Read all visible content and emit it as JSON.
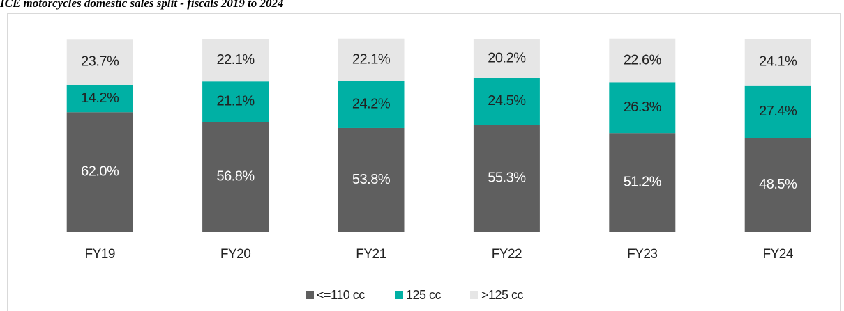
{
  "chart_data": {
    "type": "stacked_bar",
    "title": "ICE motorcycles domestic sales split - fiscals 2019 to 2024",
    "categories": [
      "FY19",
      "FY20",
      "FY21",
      "FY22",
      "FY23",
      "FY24"
    ],
    "series": [
      {
        "name": "<=110 cc",
        "color": "#5f5f5f",
        "values": [
          62.0,
          56.8,
          53.8,
          55.3,
          51.2,
          48.5
        ],
        "value_labels": [
          "62.0%",
          "56.8%",
          "53.8%",
          "55.3%",
          "51.2%",
          "48.5%"
        ]
      },
      {
        "name": "125 cc",
        "color": "#00b0a4",
        "values": [
          14.2,
          21.1,
          24.2,
          24.5,
          26.3,
          27.4
        ],
        "value_labels": [
          "14.2%",
          "21.1%",
          "24.2%",
          "24.5%",
          "26.3%",
          "27.4%"
        ]
      },
      {
        "name": ">125 cc",
        "color": "#e6e6e6",
        "values": [
          23.7,
          22.1,
          22.1,
          20.2,
          22.6,
          24.1
        ],
        "value_labels": [
          "23.7%",
          "22.1%",
          "22.1%",
          "20.2%",
          "22.6%",
          "24.1%"
        ]
      }
    ],
    "ylim": [
      0,
      100
    ],
    "legend": "bottom"
  }
}
